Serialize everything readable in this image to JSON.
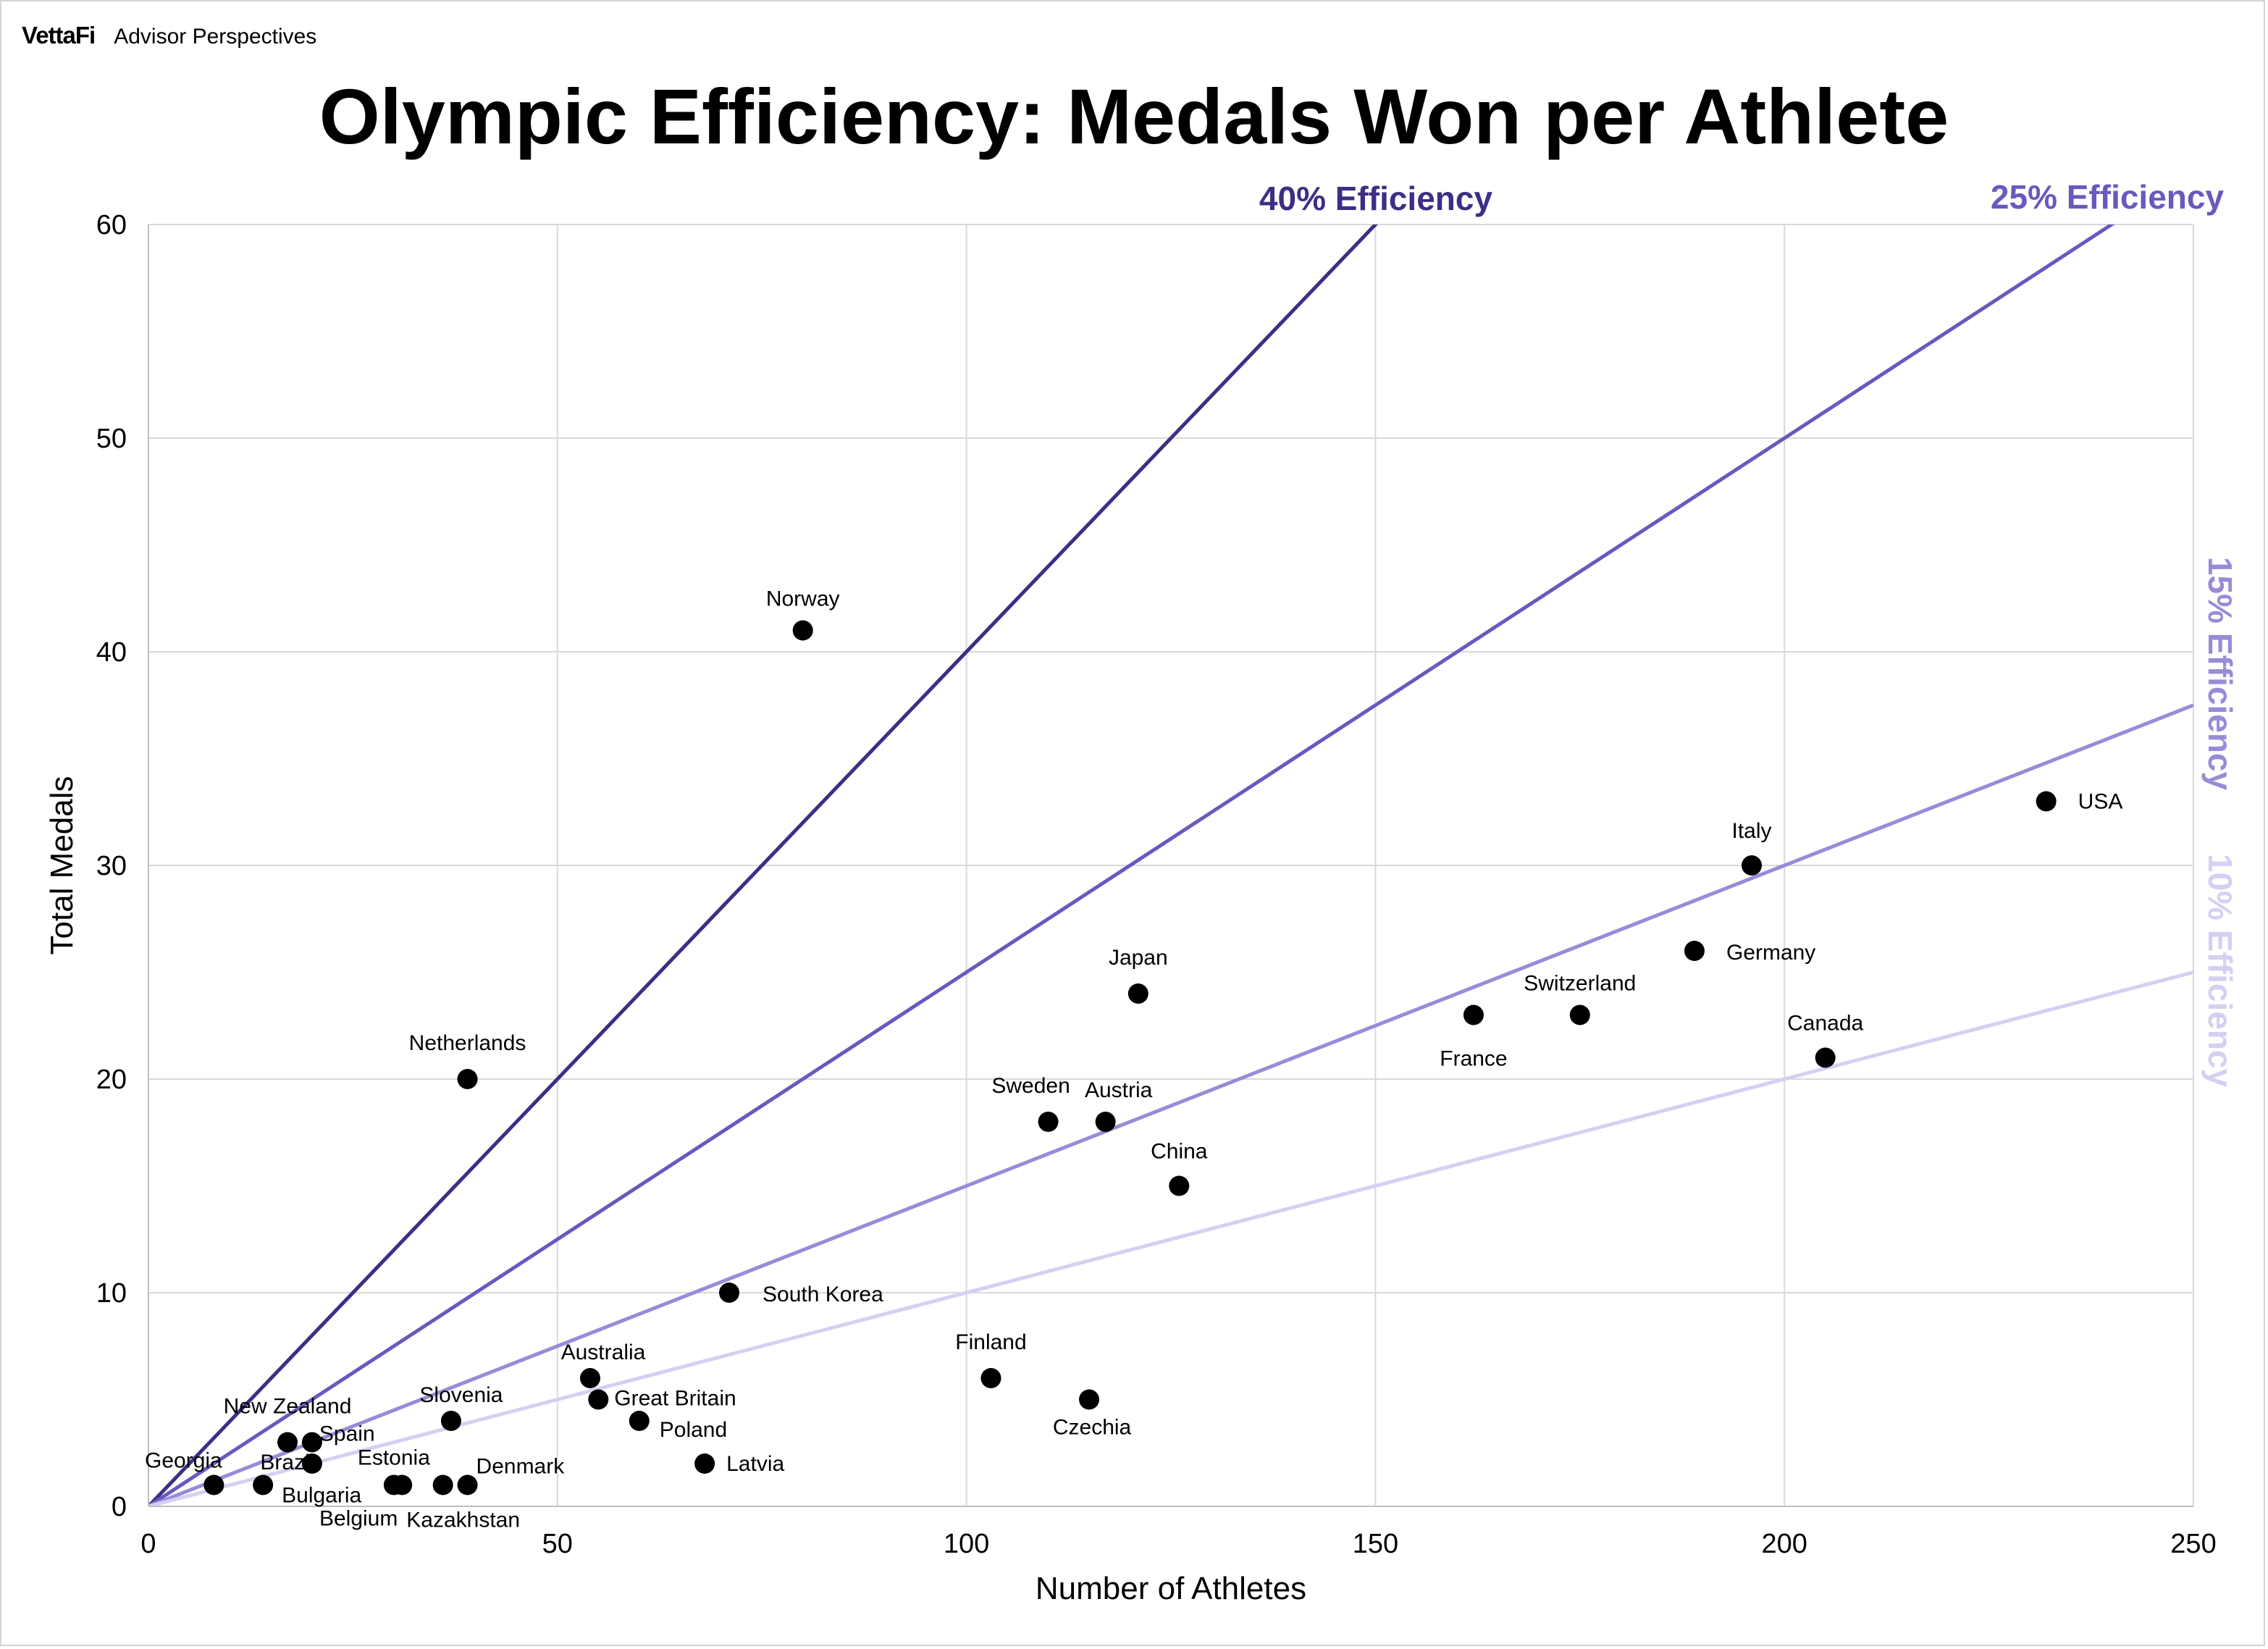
{
  "header": {
    "brand": "VettaFi",
    "brand_sub": "Advisor Perspectives"
  },
  "chart_data": {
    "type": "scatter",
    "title": "Olympic Efficiency: Medals Won per Athlete",
    "xlabel": "Number of Athletes",
    "ylabel": "Total Medals",
    "xlim": [
      0,
      250
    ],
    "ylim": [
      0,
      60
    ],
    "xticks": [
      0,
      50,
      100,
      150,
      200,
      250
    ],
    "yticks": [
      0,
      10,
      20,
      30,
      40,
      50,
      60
    ],
    "grid": true,
    "reference_lines": [
      {
        "label": "40% Efficiency",
        "slope": 0.4,
        "color": "#3f2d85"
      },
      {
        "label": "25% Efficiency",
        "slope": 0.25,
        "color": "#6a58bf"
      },
      {
        "label": "15% Efficiency",
        "slope": 0.15,
        "color": "#9a8ad8"
      },
      {
        "label": "10% Efficiency",
        "slope": 0.1,
        "color": "#d6cff3"
      }
    ],
    "points": [
      {
        "label": "Norway",
        "x": 80,
        "y": 41
      },
      {
        "label": "USA",
        "x": 232,
        "y": 33
      },
      {
        "label": "Italy",
        "x": 196,
        "y": 30
      },
      {
        "label": "Germany",
        "x": 189,
        "y": 26
      },
      {
        "label": "Japan",
        "x": 121,
        "y": 24
      },
      {
        "label": "France",
        "x": 162,
        "y": 23
      },
      {
        "label": "Switzerland",
        "x": 175,
        "y": 23
      },
      {
        "label": "Canada",
        "x": 205,
        "y": 21
      },
      {
        "label": "Netherlands",
        "x": 39,
        "y": 20
      },
      {
        "label": "Sweden",
        "x": 110,
        "y": 18
      },
      {
        "label": "Austria",
        "x": 117,
        "y": 18
      },
      {
        "label": "China",
        "x": 126,
        "y": 15
      },
      {
        "label": "South Korea",
        "x": 71,
        "y": 10
      },
      {
        "label": "Finland",
        "x": 103,
        "y": 6
      },
      {
        "label": "Australia",
        "x": 54,
        "y": 6
      },
      {
        "label": "Czechia",
        "x": 115,
        "y": 5
      },
      {
        "label": "Great Britain",
        "x": 55,
        "y": 5
      },
      {
        "label": "Slovenia",
        "x": 37,
        "y": 4
      },
      {
        "label": "Poland",
        "x": 60,
        "y": 4
      },
      {
        "label": "New Zealand",
        "x": 17,
        "y": 3
      },
      {
        "label": "Spain",
        "x": 20,
        "y": 3
      },
      {
        "label": "Brazil",
        "x": 20,
        "y": 2
      },
      {
        "label": "Latvia",
        "x": 68,
        "y": 2
      },
      {
        "label": "Georgia",
        "x": 8,
        "y": 1
      },
      {
        "label": "Bulgaria",
        "x": 14,
        "y": 1
      },
      {
        "label": "Estonia",
        "x": 30,
        "y": 1
      },
      {
        "label": "Belgium",
        "x": 31,
        "y": 1
      },
      {
        "label": "Kazakhstan",
        "x": 36,
        "y": 1
      },
      {
        "label": "Denmark",
        "x": 39,
        "y": 1
      }
    ]
  }
}
